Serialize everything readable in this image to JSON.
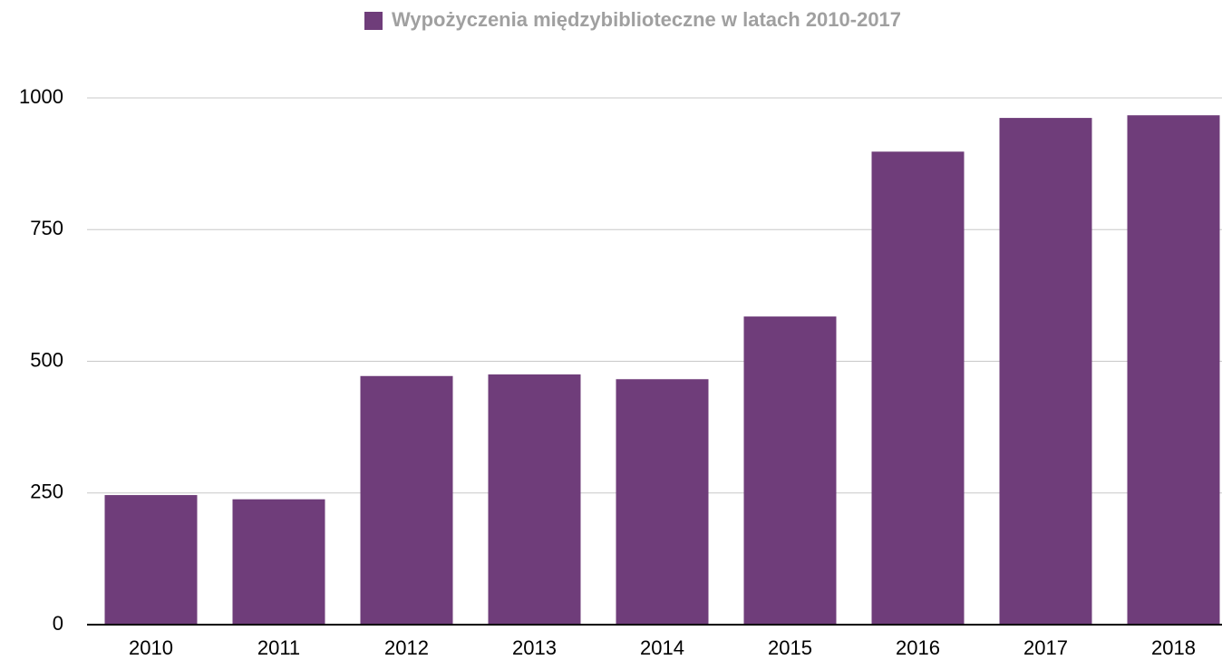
{
  "chart_data": {
    "type": "bar",
    "categories": [
      "2010",
      "2011",
      "2012",
      "2013",
      "2014",
      "2015",
      "2016",
      "2017",
      "2018"
    ],
    "series": [
      {
        "name": "Wypożyczenia międzybiblioteczne w latach 2010-2017",
        "color": "#6f3d7a",
        "values": [
          246,
          238,
          472,
          475,
          466,
          585,
          898,
          962,
          967
        ]
      }
    ],
    "ylim": [
      0,
      1000
    ],
    "yticks": [
      0,
      250,
      500,
      750,
      1000
    ],
    "grid": true
  }
}
